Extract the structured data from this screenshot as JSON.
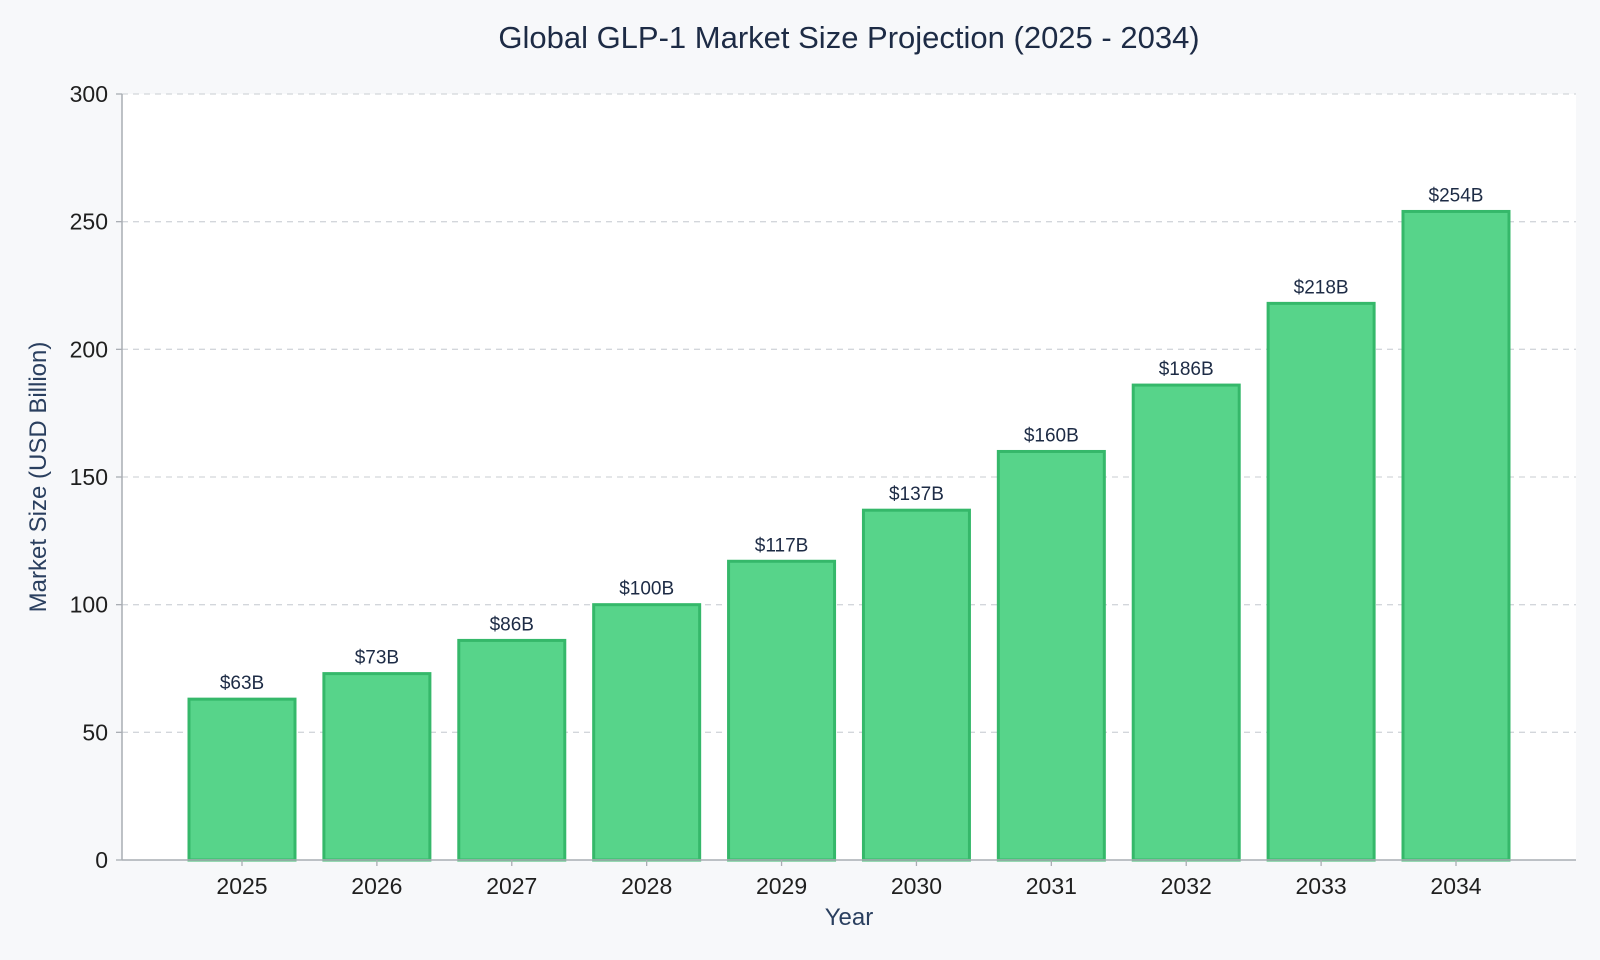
{
  "chart_data": {
    "type": "bar",
    "title": "Global GLP-1 Market Size Projection (2025 - 2034)",
    "xlabel": "Year",
    "ylabel": "Market Size (USD Billion)",
    "categories": [
      "2025",
      "2026",
      "2027",
      "2028",
      "2029",
      "2030",
      "2031",
      "2032",
      "2033",
      "2034"
    ],
    "values": [
      63,
      73,
      86,
      100,
      117,
      137,
      160,
      186,
      218,
      254
    ],
    "data_labels": [
      "$63B",
      "$73B",
      "$86B",
      "$100B",
      "$117B",
      "$137B",
      "$160B",
      "$186B",
      "$218B",
      "$254B"
    ],
    "ylim": [
      0,
      300
    ],
    "yticks": [
      0,
      50,
      100,
      150,
      200,
      250,
      300
    ],
    "ytick_labels": [
      "0",
      "50",
      "100",
      "150",
      "200",
      "250",
      "300"
    ],
    "grid": "horizontal dashed",
    "bar_color": "#57d48a",
    "bar_edge_color": "#35b86a",
    "background_color": "#f7f8fa",
    "plot_background_color": "#ffffff"
  }
}
